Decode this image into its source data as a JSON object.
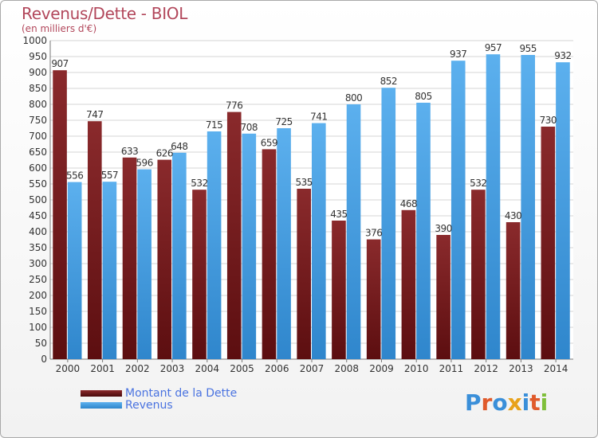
{
  "title": "Revenus/Dette - BIOL",
  "subtitle": "(en milliers d'€)",
  "brand": "Proxiti",
  "colors": {
    "debt": "#7a1a1c",
    "revenue": "#4aa3e6",
    "title": "#b2475b",
    "legend_text": "#4a73e0"
  },
  "chart_data": {
    "type": "bar",
    "title": "Revenus/Dette - BIOL",
    "ylabel": "(en milliers d'€)",
    "ylim": [
      0,
      1000
    ],
    "ytick_step": 50,
    "grid": true,
    "legend_position": "bottom-left",
    "categories": [
      "2000",
      "2001",
      "2002",
      "2003",
      "2004",
      "2005",
      "2006",
      "2007",
      "2008",
      "2009",
      "2010",
      "2011",
      "2012",
      "2013",
      "2014"
    ],
    "series": [
      {
        "name": "Montant de la Dette",
        "color": "#7a1a1c",
        "values": [
          907,
          747,
          633,
          626,
          532,
          776,
          659,
          535,
          435,
          376,
          468,
          390,
          532,
          430,
          730
        ]
      },
      {
        "name": "Revenus",
        "color": "#4aa3e6",
        "values": [
          556,
          557,
          596,
          648,
          715,
          708,
          725,
          741,
          800,
          852,
          805,
          937,
          957,
          955,
          932
        ]
      }
    ]
  },
  "legend": [
    {
      "label": "Montant de la Dette"
    },
    {
      "label": "Revenus"
    }
  ]
}
